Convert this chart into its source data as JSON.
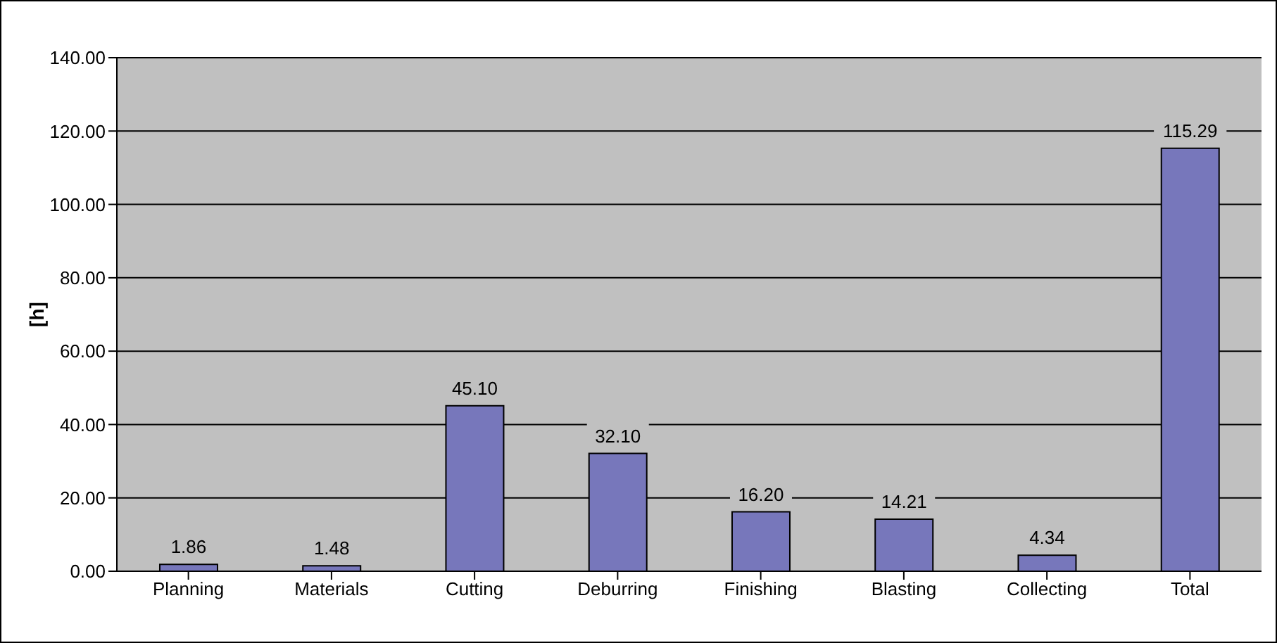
{
  "chart_data": {
    "type": "bar",
    "ylabel": "[h]",
    "categories": [
      "Planning",
      "Materials",
      "Cutting",
      "Deburring",
      "Finishing",
      "Blasting",
      "Collecting",
      "Total"
    ],
    "values": [
      1.86,
      1.48,
      45.1,
      32.1,
      16.2,
      14.21,
      4.34,
      115.29
    ],
    "value_labels": [
      "1.86",
      "1.48",
      "45.10",
      "32.10",
      "16.20",
      "14.21",
      "4.34",
      "115.29"
    ],
    "color": "#7777bb",
    "ylim": [
      0,
      140
    ],
    "yticks": [
      {
        "value": 0,
        "label": "0.00"
      },
      {
        "value": 20,
        "label": "20.00"
      },
      {
        "value": 40,
        "label": "40.00"
      },
      {
        "value": 60,
        "label": "60.00"
      },
      {
        "value": 80,
        "label": "80.00"
      },
      {
        "value": 100,
        "label": "100.00"
      },
      {
        "value": 120,
        "label": "120.00"
      },
      {
        "value": 140,
        "label": "140.00"
      }
    ],
    "grid": "y",
    "legend": false
  }
}
